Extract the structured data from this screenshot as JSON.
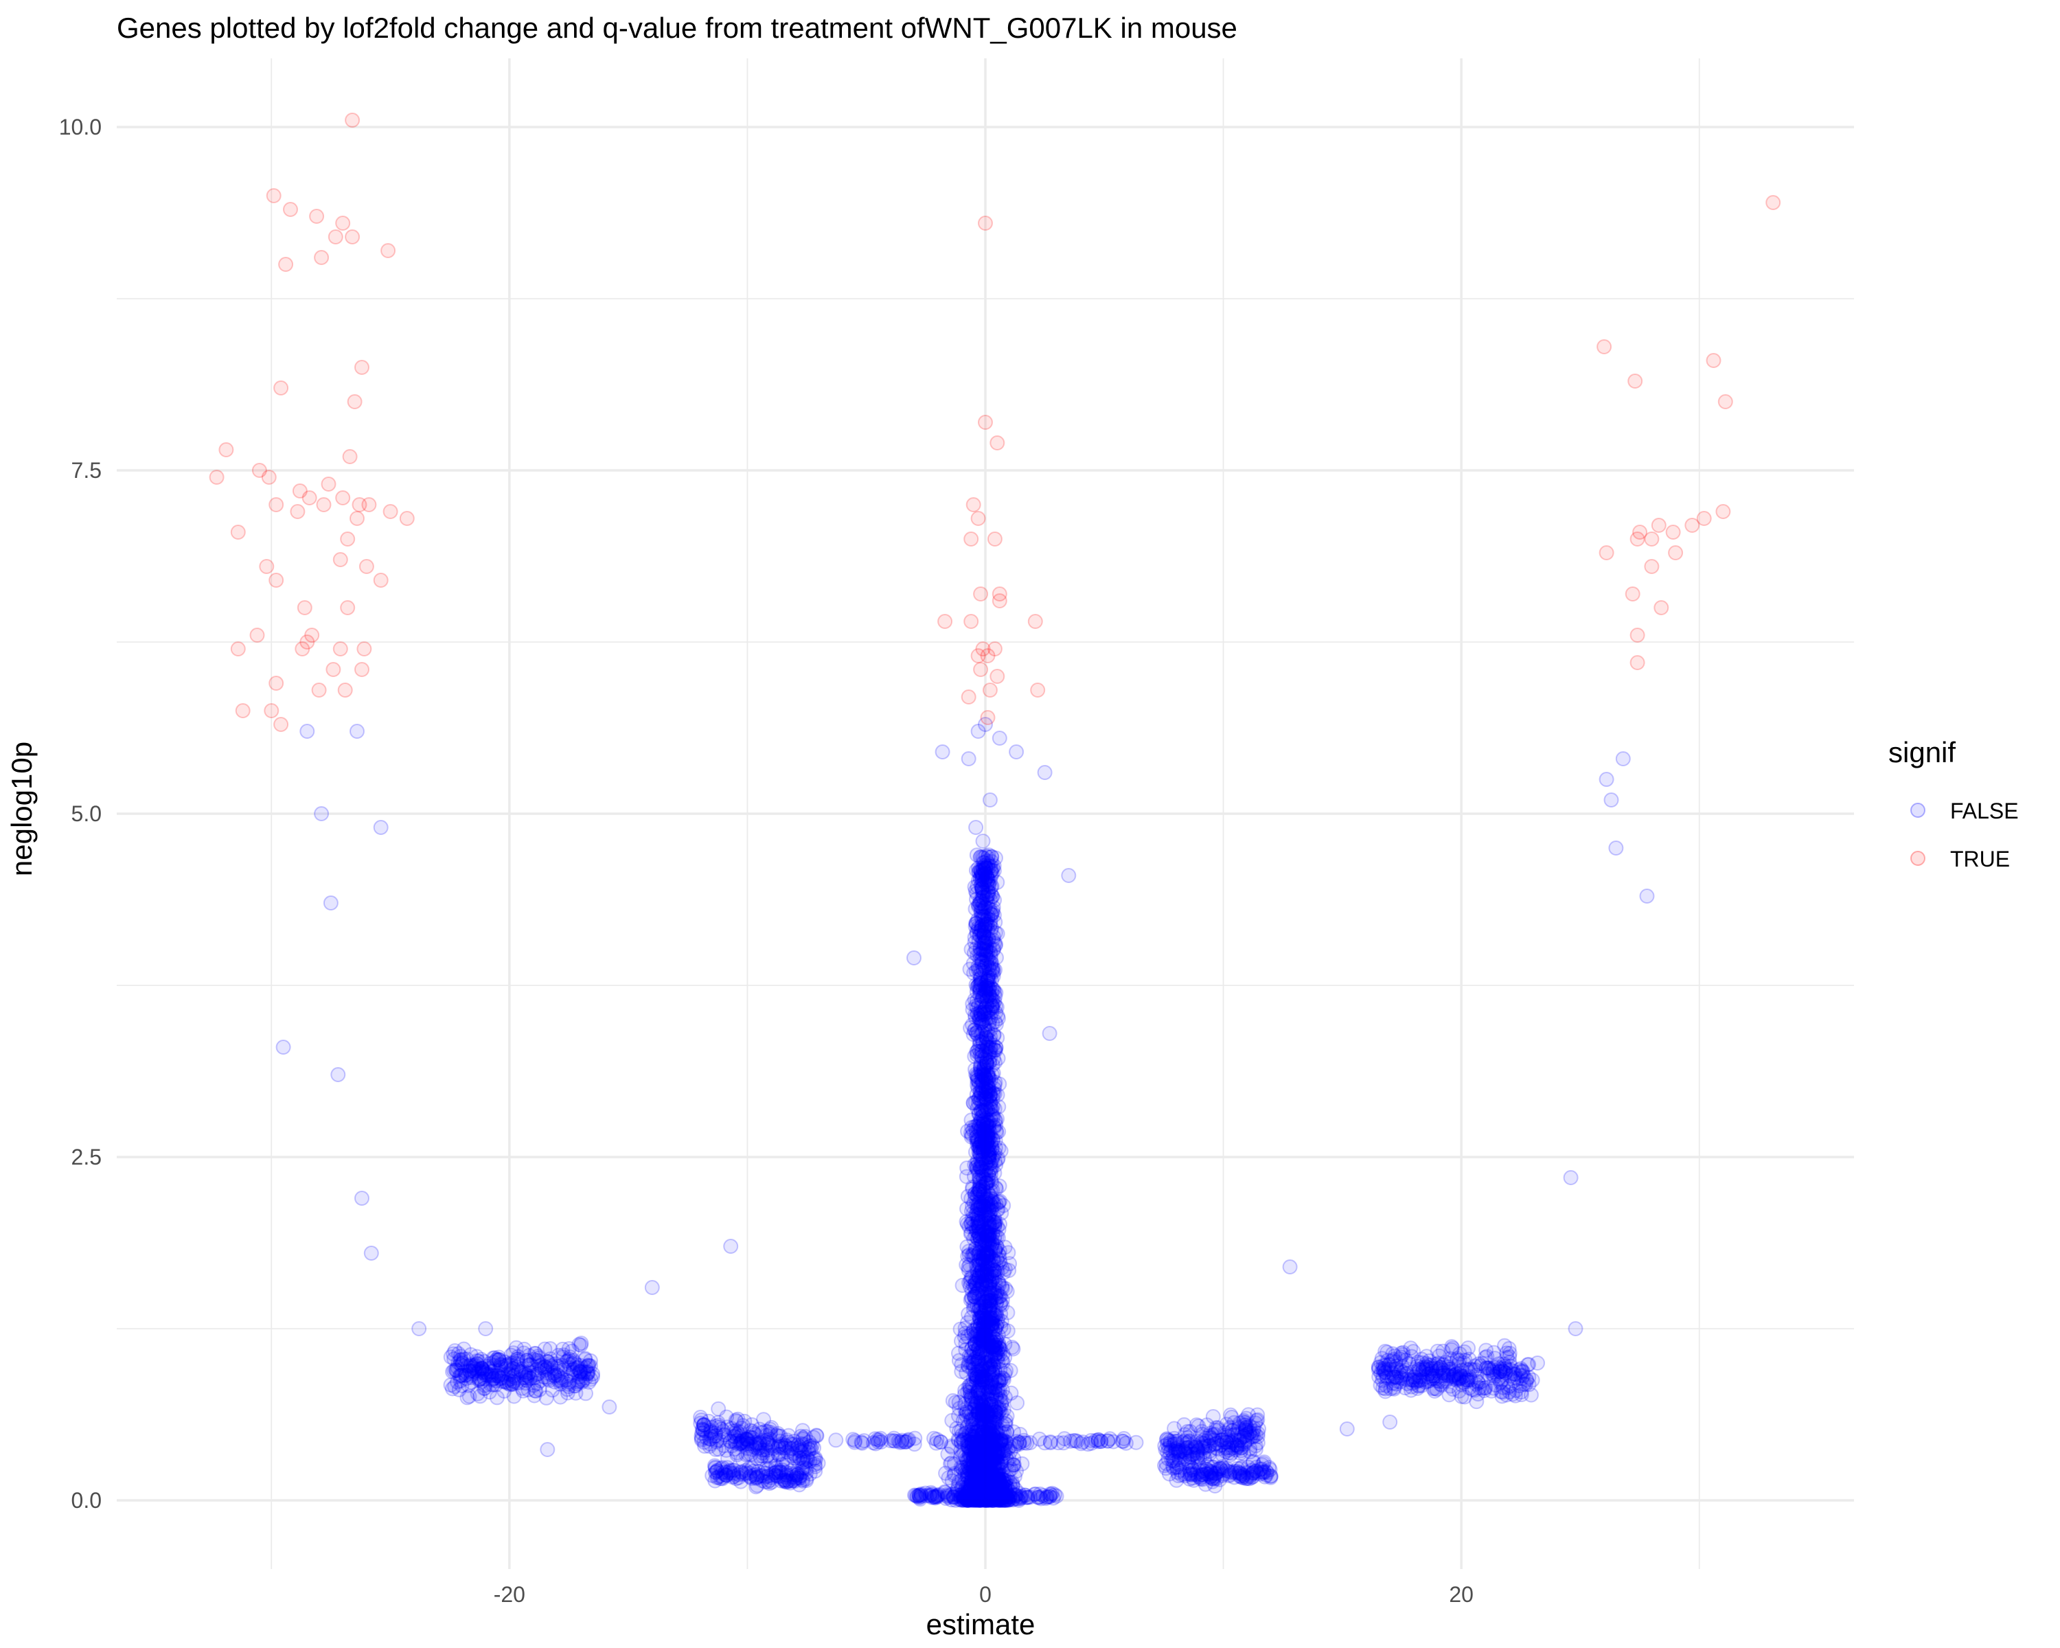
{
  "chart_data": {
    "type": "scatter",
    "title": "Genes plotted by lof2fold change and q-value from treatment ofWNT_G007LK in mouse",
    "xlabel": "estimate",
    "ylabel": "neglog10p",
    "xlim": [
      -36.5,
      36.5
    ],
    "ylim": [
      -0.5,
      10.5
    ],
    "x_ticks": [
      -20,
      0,
      20
    ],
    "x_tick_labels": [
      "-20",
      "0",
      "20"
    ],
    "y_ticks": [
      0,
      2.5,
      5,
      7.5,
      10
    ],
    "y_tick_labels": [
      "0.0",
      "2.5",
      "5.0",
      "7.5",
      "10.0"
    ],
    "grid": true,
    "legend": {
      "title": "signif",
      "position": "right",
      "entries": [
        {
          "label": "FALSE",
          "color": "#0000ff"
        },
        {
          "label": "TRUE",
          "color": "#ff0000"
        }
      ]
    },
    "point_alpha": 0.1,
    "series": [
      {
        "name": "FALSE",
        "color": "#0000ff",
        "points": [
          [
            -28.5,
            5.6
          ],
          [
            -27.9,
            5.0
          ],
          [
            -27.5,
            4.35
          ],
          [
            -26.4,
            5.6
          ],
          [
            -25.4,
            4.9
          ],
          [
            -29.5,
            3.3
          ],
          [
            -27.2,
            3.1
          ],
          [
            -26.2,
            2.2
          ],
          [
            -25.8,
            1.8
          ],
          [
            -23.8,
            1.25
          ],
          [
            -21.0,
            1.25
          ],
          [
            -14.0,
            1.55
          ],
          [
            -10.7,
            1.85
          ],
          [
            -18.4,
            0.37
          ],
          [
            0.0,
            5.65
          ],
          [
            -0.3,
            5.6
          ],
          [
            0.6,
            5.55
          ],
          [
            -0.7,
            5.4
          ],
          [
            1.3,
            5.45
          ],
          [
            2.5,
            5.3
          ],
          [
            -1.8,
            5.45
          ],
          [
            0.2,
            5.1
          ],
          [
            -0.4,
            4.9
          ],
          [
            3.5,
            4.55
          ],
          [
            -0.1,
            4.8
          ],
          [
            0.5,
            4.5
          ],
          [
            -3.0,
            3.95
          ],
          [
            2.7,
            3.4
          ],
          [
            12.8,
            1.7
          ],
          [
            24.6,
            2.35
          ],
          [
            24.8,
            1.25
          ],
          [
            26.1,
            5.25
          ],
          [
            26.3,
            5.1
          ],
          [
            26.8,
            5.4
          ],
          [
            26.5,
            4.75
          ],
          [
            27.8,
            4.4
          ],
          [
            17.0,
            0.57
          ],
          [
            22.3,
            0.8
          ],
          [
            23.2,
            1.0
          ],
          [
            -15.8,
            0.68
          ],
          [
            15.2,
            0.52
          ]
        ]
      },
      {
        "name": "TRUE",
        "color": "#ff0000",
        "points": [
          [
            -26.6,
            10.05
          ],
          [
            -29.9,
            9.5
          ],
          [
            -29.2,
            9.4
          ],
          [
            -28.1,
            9.35
          ],
          [
            -27.0,
            9.3
          ],
          [
            -26.6,
            9.2
          ],
          [
            -25.1,
            9.1
          ],
          [
            -27.9,
            9.05
          ],
          [
            -29.4,
            9.0
          ],
          [
            -27.3,
            9.2
          ],
          [
            -26.2,
            8.25
          ],
          [
            -29.6,
            8.1
          ],
          [
            -26.5,
            8.0
          ],
          [
            -31.9,
            7.65
          ],
          [
            -30.5,
            7.5
          ],
          [
            -26.7,
            7.6
          ],
          [
            -32.3,
            7.45
          ],
          [
            -30.1,
            7.45
          ],
          [
            -28.8,
            7.35
          ],
          [
            -28.4,
            7.3
          ],
          [
            -27.6,
            7.4
          ],
          [
            -27.0,
            7.3
          ],
          [
            -26.3,
            7.25
          ],
          [
            -25.9,
            7.25
          ],
          [
            -25.0,
            7.2
          ],
          [
            -24.3,
            7.15
          ],
          [
            -29.8,
            7.25
          ],
          [
            -28.9,
            7.2
          ],
          [
            -27.8,
            7.25
          ],
          [
            -26.4,
            7.15
          ],
          [
            -31.4,
            7.05
          ],
          [
            -26.8,
            7.0
          ],
          [
            -30.2,
            6.8
          ],
          [
            -27.1,
            6.85
          ],
          [
            -26.0,
            6.8
          ],
          [
            -29.8,
            6.7
          ],
          [
            -25.4,
            6.7
          ],
          [
            -28.6,
            6.5
          ],
          [
            -26.8,
            6.5
          ],
          [
            -28.3,
            6.3
          ],
          [
            -31.4,
            6.2
          ],
          [
            -30.6,
            6.3
          ],
          [
            -28.7,
            6.2
          ],
          [
            -27.1,
            6.2
          ],
          [
            -26.1,
            6.2
          ],
          [
            -27.4,
            6.05
          ],
          [
            -26.2,
            6.05
          ],
          [
            -29.8,
            5.95
          ],
          [
            -28.0,
            5.9
          ],
          [
            -26.9,
            5.9
          ],
          [
            -31.2,
            5.75
          ],
          [
            -30.0,
            5.75
          ],
          [
            -29.6,
            5.65
          ],
          [
            -28.5,
            6.25
          ],
          [
            0.0,
            9.3
          ],
          [
            0.0,
            7.85
          ],
          [
            0.5,
            7.7
          ],
          [
            -0.5,
            7.25
          ],
          [
            -0.3,
            7.15
          ],
          [
            0.4,
            7.0
          ],
          [
            -0.6,
            7.0
          ],
          [
            -0.2,
            6.6
          ],
          [
            0.6,
            6.6
          ],
          [
            0.6,
            6.55
          ],
          [
            -1.7,
            6.4
          ],
          [
            -0.6,
            6.4
          ],
          [
            2.1,
            6.4
          ],
          [
            -0.1,
            6.2
          ],
          [
            0.4,
            6.2
          ],
          [
            0.1,
            6.15
          ],
          [
            -0.3,
            6.15
          ],
          [
            -0.2,
            6.05
          ],
          [
            0.5,
            6.0
          ],
          [
            0.2,
            5.9
          ],
          [
            2.2,
            5.9
          ],
          [
            -0.7,
            5.85
          ],
          [
            0.1,
            5.7
          ],
          [
            33.1,
            9.45
          ],
          [
            26.0,
            8.4
          ],
          [
            30.6,
            8.3
          ],
          [
            27.3,
            8.15
          ],
          [
            31.1,
            8.0
          ],
          [
            31.0,
            7.2
          ],
          [
            30.2,
            7.15
          ],
          [
            29.7,
            7.1
          ],
          [
            28.9,
            7.05
          ],
          [
            28.3,
            7.1
          ],
          [
            27.5,
            7.05
          ],
          [
            27.4,
            7.0
          ],
          [
            26.1,
            6.9
          ],
          [
            28.0,
            7.0
          ],
          [
            29.0,
            6.9
          ],
          [
            28.0,
            6.8
          ],
          [
            27.2,
            6.6
          ],
          [
            28.4,
            6.5
          ],
          [
            27.4,
            6.3
          ],
          [
            27.4,
            6.1
          ]
        ]
      }
    ],
    "dense_clusters": [
      {
        "series": "FALSE",
        "shape": "spike",
        "x_center": 0.0,
        "x_half_width_base": 1.1,
        "y_range": [
          0.0,
          4.7
        ],
        "n": 2600
      },
      {
        "series": "FALSE",
        "shape": "band",
        "x_range": [
          -22.5,
          -16.5
        ],
        "y_center": 0.93,
        "y_spread": 0.08,
        "n": 330
      },
      {
        "series": "FALSE",
        "shape": "band",
        "x_range": [
          16.5,
          23.0
        ],
        "y_center": 0.93,
        "y_spread": 0.08,
        "n": 330
      },
      {
        "series": "FALSE",
        "shape": "slope",
        "x_range": [
          -12.0,
          -7.0
        ],
        "y_start": 0.5,
        "y_end": 0.34,
        "y_spread": 0.07,
        "n": 230
      },
      {
        "series": "FALSE",
        "shape": "slope",
        "x_range": [
          7.5,
          11.5
        ],
        "y_start": 0.34,
        "y_end": 0.5,
        "y_spread": 0.07,
        "n": 230
      },
      {
        "series": "FALSE",
        "shape": "slope",
        "x_range": [
          -11.5,
          -7.5
        ],
        "y_start": 0.2,
        "y_end": 0.17,
        "y_spread": 0.03,
        "n": 130
      },
      {
        "series": "FALSE",
        "shape": "slope",
        "x_range": [
          8.0,
          12.0
        ],
        "y_start": 0.18,
        "y_end": 0.21,
        "y_spread": 0.03,
        "n": 130
      },
      {
        "series": "FALSE",
        "shape": "row",
        "x_range": [
          -6.5,
          6.5
        ],
        "y": 0.43,
        "n": 90
      },
      {
        "series": "FALSE",
        "shape": "row",
        "x_range": [
          -3.0,
          3.0
        ],
        "y": 0.03,
        "n": 110
      }
    ]
  }
}
